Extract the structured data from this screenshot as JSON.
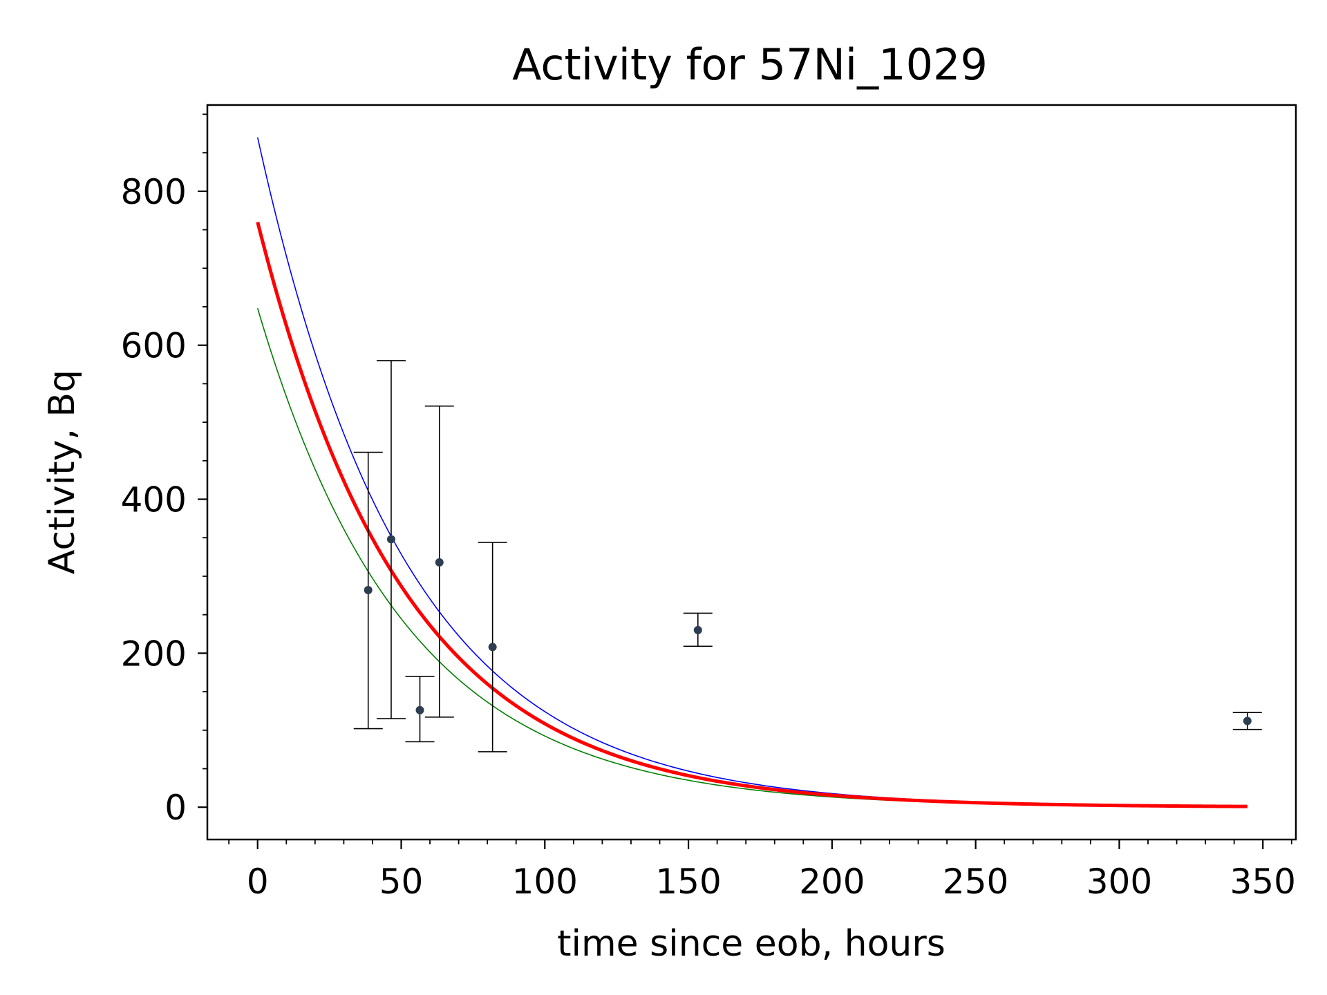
{
  "chart_data": {
    "type": "scatter",
    "title": "Activity for 57Ni_1029",
    "xlabel": "time since eob, hours",
    "ylabel": "Activity, Bq",
    "xlim": [
      -17.5,
      361.5
    ],
    "ylim": [
      -42,
      912
    ],
    "xticks": [
      0,
      50,
      100,
      150,
      200,
      250,
      300,
      350
    ],
    "yticks": [
      0,
      200,
      400,
      600,
      800
    ],
    "x_minor_step": 10,
    "y_minor_step": 50,
    "grid": false,
    "colors": {
      "points": "#2c3e50",
      "errorbars": "#000000",
      "fit": "#ff0000",
      "upper_bound": "#0000ff",
      "lower_bound": "#008000"
    },
    "points": [
      {
        "x": 38.5,
        "y": 282,
        "yerr_low": 102,
        "yerr_high": 461
      },
      {
        "x": 46.5,
        "y": 348,
        "yerr_low": 115,
        "yerr_high": 580
      },
      {
        "x": 56.5,
        "y": 126,
        "yerr_low": 85,
        "yerr_high": 170
      },
      {
        "x": 63.3,
        "y": 318,
        "yerr_low": 117,
        "yerr_high": 521
      },
      {
        "x": 81.8,
        "y": 208,
        "yerr_low": 72,
        "yerr_high": 344
      },
      {
        "x": 153.3,
        "y": 230,
        "yerr_low": 209,
        "yerr_high": 252
      },
      {
        "x": 344.6,
        "y": 112,
        "yerr_low": 101,
        "yerr_high": 123
      }
    ],
    "curves": [
      {
        "role": "upper_bound",
        "A0": 870,
        "half_life_hours": 35.6,
        "x_range": [
          0,
          344.6
        ]
      },
      {
        "role": "lower_bound",
        "A0": 648,
        "half_life_hours": 35.6,
        "x_range": [
          0,
          344.6
        ]
      },
      {
        "role": "fit",
        "A0": 760,
        "half_life_hours": 35.6,
        "x_range": [
          0,
          344.6
        ]
      }
    ]
  }
}
